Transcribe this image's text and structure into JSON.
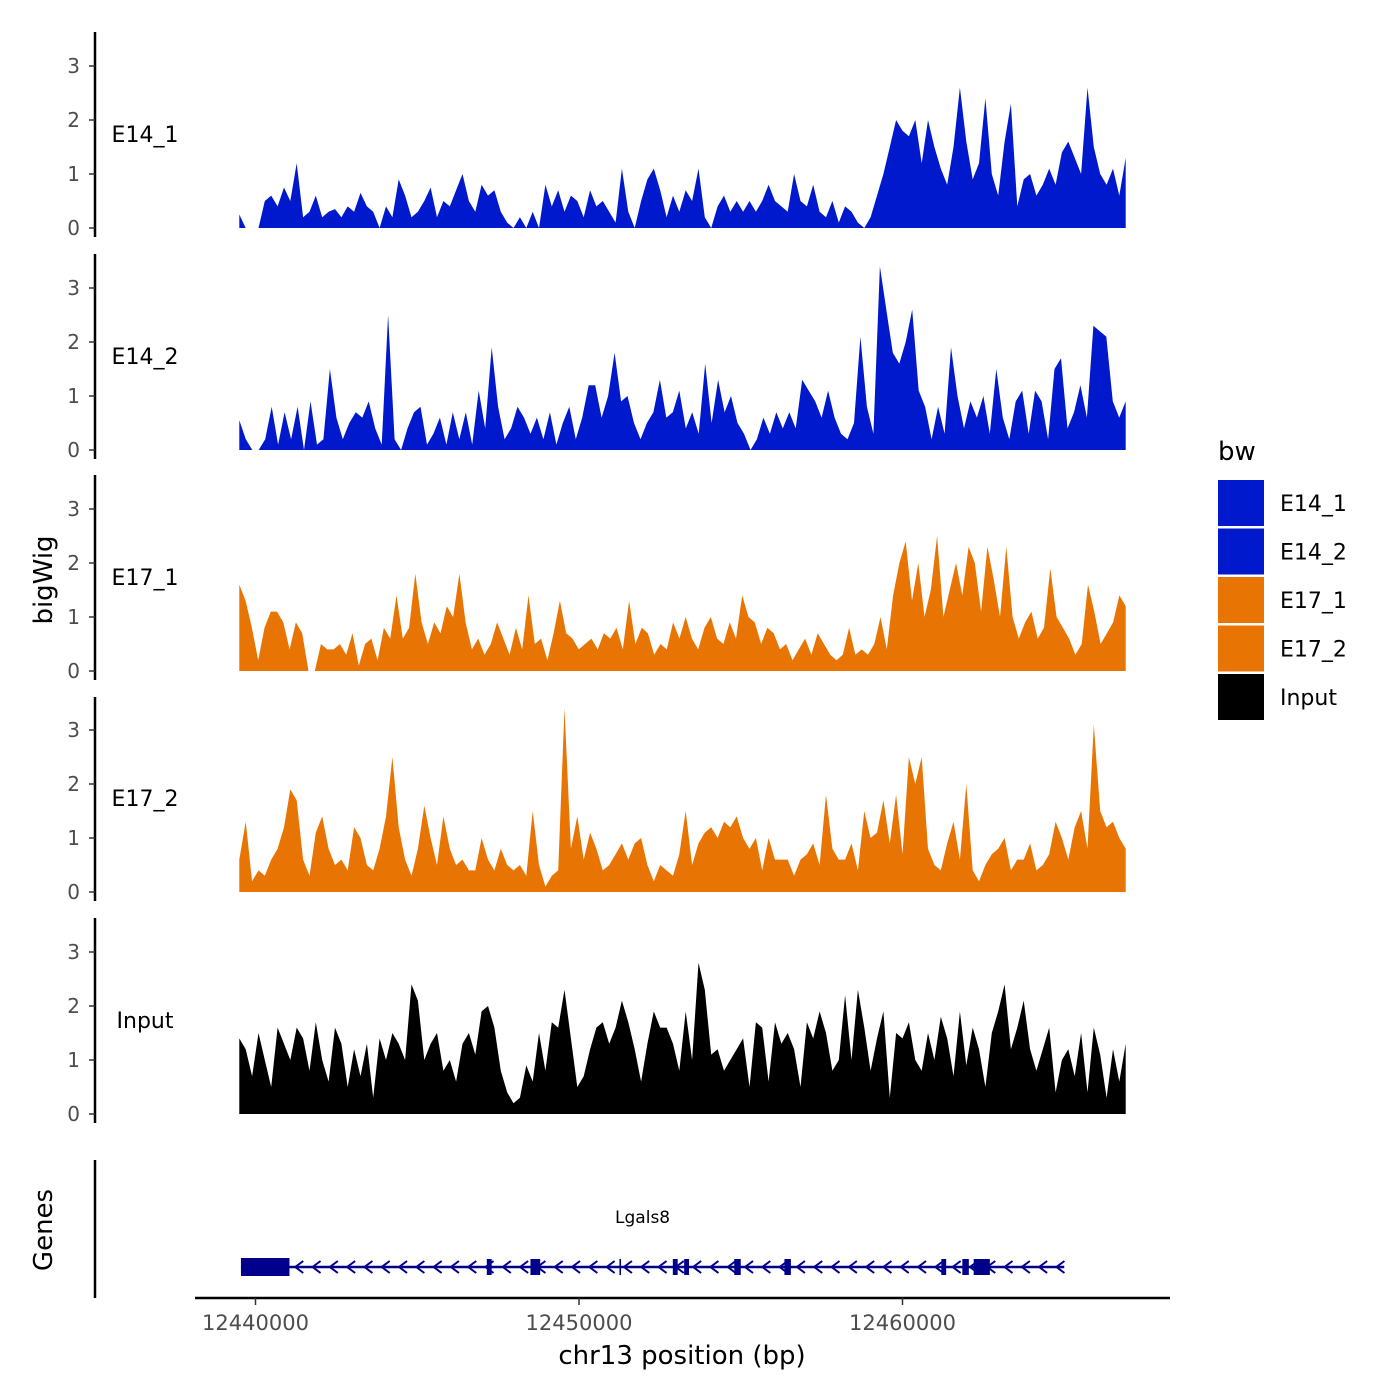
{
  "chart_data": {
    "type": "area",
    "title": "",
    "xlabel": "chr13 position (bp)",
    "ylabel": "bigWig",
    "genes_label": "Genes",
    "xlim": [
      12439000,
      12468000
    ],
    "ylim": [
      0,
      3.6
    ],
    "x_ticks": [
      12440000,
      12450000,
      12460000
    ],
    "x_tick_labels": [
      "12440000",
      "12450000",
      "12460000"
    ],
    "y_ticks": [
      0,
      1,
      2,
      3
    ],
    "y_tick_labels": [
      "0",
      "1",
      "2",
      "3"
    ],
    "track_start": 12439500,
    "track_end": 12466900,
    "legend": {
      "title": "bw",
      "entries": [
        {
          "label": "E14_1",
          "color": "#0019CC"
        },
        {
          "label": "E14_2",
          "color": "#0019CC"
        },
        {
          "label": "E17_1",
          "color": "#E87503"
        },
        {
          "label": "E17_2",
          "color": "#E87503"
        },
        {
          "label": "Input",
          "color": "#000000"
        }
      ]
    },
    "series": [
      {
        "name": "E14_1",
        "color": "#0019CC",
        "values": [
          0.25,
          0,
          0,
          0,
          0.5,
          0.6,
          0.4,
          0.75,
          0.5,
          1.2,
          0.2,
          0.3,
          0.6,
          0.2,
          0.3,
          0.35,
          0.2,
          0.4,
          0.3,
          0.65,
          0.4,
          0.3,
          0,
          0.4,
          0.2,
          0.9,
          0.6,
          0.2,
          0.3,
          0.5,
          0.75,
          0.2,
          0.5,
          0.4,
          0.7,
          1.0,
          0.5,
          0.3,
          0.8,
          0.6,
          0.7,
          0.3,
          0.1,
          0,
          0.2,
          0,
          0.3,
          0,
          0.8,
          0.4,
          0.7,
          0.3,
          0.6,
          0.5,
          0.2,
          0.7,
          0.4,
          0.5,
          0.3,
          0.1,
          1.1,
          0.3,
          0,
          0.5,
          0.9,
          1.1,
          0.7,
          0.2,
          0.6,
          0.3,
          0.7,
          0.5,
          1.1,
          0.2,
          0,
          0.4,
          0.6,
          0.3,
          0.5,
          0.3,
          0.5,
          0.3,
          0.5,
          0.8,
          0.5,
          0.4,
          0.3,
          1.0,
          0.5,
          0.4,
          0.8,
          0.3,
          0.2,
          0.5,
          0.1,
          0.4,
          0.3,
          0.1,
          0,
          0.2,
          0.6,
          1.0,
          1.5,
          2.0,
          1.8,
          1.7,
          2.0,
          1.2,
          2.0,
          1.5,
          1.1,
          0.8,
          1.5,
          2.6,
          1.6,
          0.9,
          1.2,
          2.4,
          1.0,
          0.6,
          1.6,
          2.3,
          0.4,
          0.9,
          1.0,
          0.6,
          0.8,
          1.1,
          0.8,
          1.4,
          1.6,
          1.3,
          1.0,
          2.6,
          1.5,
          1.0,
          0.8,
          1.1,
          0.6,
          1.3
        ]
      },
      {
        "name": "E14_2",
        "color": "#0019CC",
        "values": [
          0.55,
          0.2,
          0,
          0,
          0.2,
          0.8,
          0.1,
          0.7,
          0.2,
          0.8,
          0,
          0.9,
          0.1,
          0.2,
          1.5,
          0.6,
          0.2,
          0.5,
          0.7,
          0.6,
          0.9,
          0.4,
          0.1,
          2.5,
          0.2,
          0,
          0.4,
          0.7,
          0.8,
          0.1,
          0.3,
          0.6,
          0.1,
          0.7,
          0.2,
          0.7,
          0.1,
          1.1,
          0.4,
          1.9,
          0.8,
          0.2,
          0.4,
          0.8,
          0.6,
          0.3,
          0.6,
          0.2,
          0.7,
          0.1,
          0.5,
          0.8,
          0.2,
          0.6,
          1.2,
          1.2,
          0.6,
          1.0,
          1.8,
          0.9,
          1.0,
          0.5,
          0.2,
          0.5,
          0.7,
          1.3,
          0.6,
          0.7,
          1.1,
          0.4,
          0.7,
          0.3,
          1.6,
          0.5,
          1.3,
          0.7,
          1.0,
          0.5,
          0.3,
          0,
          0.2,
          0.6,
          0.3,
          0.7,
          0.4,
          0.7,
          0.4,
          1.3,
          1.1,
          0.9,
          0.6,
          1.1,
          0.6,
          0.3,
          0.2,
          0.5,
          2.1,
          0.8,
          0.3,
          3.4,
          2.6,
          1.8,
          1.6,
          2.0,
          2.6,
          1.1,
          0.8,
          0.2,
          0.8,
          0.3,
          1.9,
          1.0,
          0.4,
          0.9,
          0.6,
          1.0,
          0.3,
          1.5,
          0.6,
          0.2,
          0.9,
          1.1,
          0.3,
          1.1,
          0.9,
          0.2,
          1.5,
          1.7,
          0.4,
          0.7,
          1.2,
          0.6,
          2.3,
          2.2,
          2.1,
          0.9,
          0.6,
          0.9
        ]
      },
      {
        "name": "E17_1",
        "color": "#E87503",
        "values": [
          1.6,
          1.3,
          0.8,
          0.2,
          0.8,
          1.1,
          1.1,
          0.9,
          0.4,
          0.9,
          0.7,
          0,
          0,
          0.5,
          0.4,
          0.4,
          0.5,
          0.3,
          0.7,
          0.1,
          0.5,
          0.6,
          0.2,
          0.8,
          0.6,
          1.4,
          0.6,
          0.8,
          1.8,
          0.9,
          0.5,
          0.9,
          0.7,
          1.2,
          1.0,
          1.8,
          0.9,
          0.4,
          0.6,
          0.3,
          0.5,
          0.9,
          0.6,
          0.3,
          0.8,
          0.4,
          1.4,
          0.5,
          0.6,
          0.2,
          0.7,
          1.3,
          0.7,
          0.6,
          0.4,
          0.5,
          0.6,
          0.4,
          0.7,
          0.6,
          0.8,
          0.4,
          1.3,
          0.5,
          0.8,
          0.7,
          0.3,
          0.5,
          0.4,
          0.9,
          0.6,
          1.0,
          0.6,
          0.4,
          0.8,
          1.0,
          0.6,
          0.5,
          0.9,
          0.6,
          1.4,
          1.0,
          0.9,
          0.5,
          0.8,
          0.7,
          0.4,
          0.5,
          0.2,
          0.4,
          0.6,
          0.3,
          0.7,
          0.5,
          0.3,
          0.2,
          0.3,
          0.8,
          0.3,
          0.4,
          0.3,
          0.5,
          1.0,
          0.4,
          1.4,
          2.0,
          2.4,
          1.3,
          2.0,
          1.0,
          1.5,
          2.5,
          1.0,
          1.5,
          2.0,
          1.4,
          2.3,
          2.0,
          1.1,
          2.3,
          1.7,
          1.0,
          2.3,
          1.0,
          0.6,
          0.9,
          1.1,
          0.6,
          0.8,
          1.9,
          1.0,
          0.8,
          0.6,
          0.3,
          0.5,
          1.6,
          1.1,
          0.5,
          0.7,
          0.9,
          1.4,
          1.2
        ]
      },
      {
        "name": "E17_2",
        "color": "#E87503",
        "values": [
          0.6,
          1.3,
          0.2,
          0.4,
          0.3,
          0.6,
          0.8,
          1.2,
          1.9,
          1.7,
          0.6,
          0.3,
          1.1,
          1.4,
          0.8,
          0.5,
          0.6,
          0.4,
          1.2,
          1.0,
          0.5,
          0.4,
          0.8,
          1.4,
          2.5,
          1.2,
          0.6,
          0.3,
          0.8,
          1.6,
          1.0,
          0.5,
          1.4,
          0.8,
          0.5,
          0.6,
          0.4,
          0.4,
          1.0,
          0.6,
          0.4,
          0.8,
          0.5,
          0.4,
          0.5,
          0.3,
          1.5,
          0.5,
          0.1,
          0.3,
          0.4,
          3.4,
          0.8,
          1.4,
          0.6,
          1.1,
          0.8,
          0.4,
          0.5,
          0.7,
          0.9,
          0.6,
          0.9,
          1.0,
          0.5,
          0.2,
          0.5,
          0.4,
          0.3,
          0.7,
          1.5,
          0.5,
          0.9,
          1.1,
          1.2,
          1.0,
          1.3,
          1.2,
          1.4,
          1.0,
          0.8,
          1.0,
          0.4,
          1.0,
          0.6,
          0.6,
          0.6,
          0.3,
          0.6,
          0.7,
          0.9,
          0.5,
          1.8,
          0.8,
          0.6,
          0.6,
          0.9,
          0.4,
          1.5,
          1.0,
          1.1,
          1.7,
          0.9,
          1.8,
          0.7,
          2.5,
          2.0,
          2.5,
          0.8,
          0.5,
          0.4,
          0.9,
          1.3,
          0.6,
          2.0,
          0.4,
          0.2,
          0.5,
          0.7,
          0.8,
          1.0,
          0.4,
          0.6,
          0.6,
          0.9,
          0.4,
          0.5,
          0.7,
          1.3,
          1.0,
          0.6,
          1.2,
          1.5,
          0.8,
          3.1,
          1.5,
          1.2,
          1.3,
          1.0,
          0.8
        ]
      },
      {
        "name": "Input",
        "color": "#000000",
        "values": [
          1.4,
          1.2,
          0.7,
          1.5,
          1.0,
          0.5,
          1.6,
          1.3,
          1.0,
          1.6,
          1.4,
          0.8,
          1.7,
          1.0,
          0.6,
          1.6,
          1.3,
          0.5,
          1.2,
          0.7,
          1.3,
          0.3,
          1.4,
          1.0,
          1.5,
          1.3,
          1.0,
          2.4,
          2.1,
          1.0,
          1.3,
          1.5,
          0.8,
          1.0,
          0.6,
          1.3,
          1.5,
          1.1,
          1.9,
          2.0,
          1.6,
          0.8,
          0.4,
          0.2,
          0.3,
          0.9,
          0.6,
          1.5,
          0.8,
          1.7,
          1.6,
          2.3,
          1.4,
          0.5,
          0.7,
          1.2,
          1.6,
          1.7,
          1.3,
          1.6,
          2.1,
          1.7,
          1.2,
          0.6,
          1.3,
          1.9,
          1.6,
          1.6,
          1.3,
          0.8,
          1.9,
          1.0,
          2.8,
          2.3,
          1.1,
          1.2,
          0.8,
          1.0,
          1.2,
          1.4,
          0.5,
          1.7,
          1.6,
          0.6,
          1.7,
          1.3,
          1.5,
          1.2,
          0.5,
          1.7,
          1.4,
          1.9,
          1.5,
          0.8,
          1.0,
          2.2,
          1.0,
          2.3,
          1.6,
          0.8,
          1.4,
          1.9,
          0.3,
          1.5,
          1.4,
          1.7,
          1.0,
          0.8,
          1.5,
          1.0,
          1.8,
          1.4,
          0.7,
          1.9,
          0.9,
          1.6,
          1.2,
          0.5,
          1.5,
          1.9,
          2.4,
          1.2,
          1.6,
          2.1,
          1.2,
          0.8,
          1.2,
          1.6,
          0.4,
          1.0,
          1.2,
          0.7,
          1.5,
          0.4,
          1.6,
          1.1,
          0.3,
          1.2,
          0.6,
          1.3
        ]
      }
    ],
    "gene": {
      "name": "Lgals8",
      "start": 12439550,
      "end": 12465000,
      "strand": "-",
      "color": "#00008B",
      "exons": [
        [
          12439550,
          12441050
        ],
        [
          12447150,
          12447300
        ],
        [
          12448500,
          12448800
        ],
        [
          12451250,
          12451300
        ],
        [
          12452900,
          12453050
        ],
        [
          12453250,
          12453400
        ],
        [
          12454800,
          12455000
        ],
        [
          12456350,
          12456550
        ],
        [
          12461200,
          12461350
        ],
        [
          12461850,
          12462050
        ],
        [
          12462200,
          12462700
        ]
      ]
    }
  }
}
